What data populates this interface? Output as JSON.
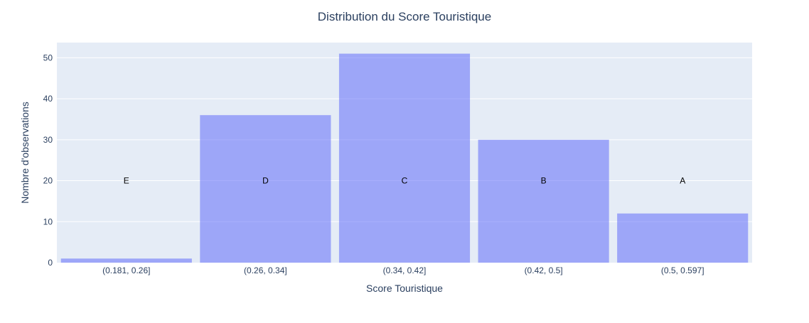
{
  "chart_data": {
    "type": "bar",
    "title": "Distribution du Score Touristique",
    "xlabel": "Score Touristique",
    "ylabel": "Nombre d'observations",
    "categories": [
      "(0.181, 0.26]",
      "(0.26, 0.34]",
      "(0.34, 0.42]",
      "(0.42, 0.5]",
      "(0.5, 0.597]"
    ],
    "values": [
      1,
      36,
      51,
      30,
      12
    ],
    "bar_labels": [
      "E",
      "D",
      "C",
      "B",
      "A"
    ],
    "ylim": [
      0,
      53.7
    ],
    "yticks": [
      0,
      10,
      20,
      30,
      40,
      50
    ],
    "grid": true,
    "legend": "none",
    "colors": {
      "plot_background": "#e5ecf6",
      "bar_fill": "#636efa",
      "bar_opacity": 0.55,
      "grid": "#ffffff",
      "text": "#2a3f5f"
    }
  }
}
